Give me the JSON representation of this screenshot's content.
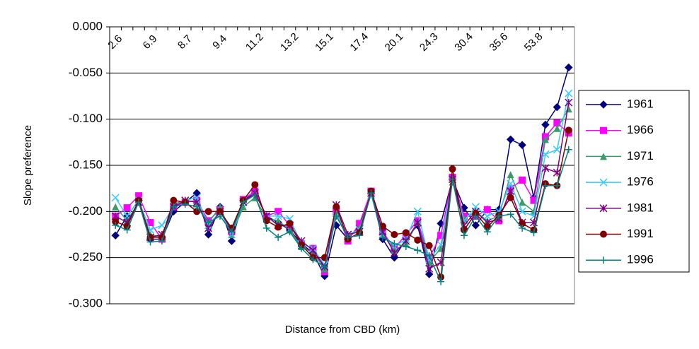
{
  "chart_data": {
    "type": "line",
    "x_label": "Distance from CBD (km)",
    "y_label": "Slope preference",
    "categories": [
      "2.6",
      null,
      null,
      "6.9",
      null,
      null,
      "8.7",
      null,
      null,
      "9.4",
      null,
      null,
      "11.2",
      null,
      null,
      "13.2",
      null,
      null,
      "15.1",
      null,
      null,
      "17.4",
      null,
      null,
      "20.1",
      null,
      null,
      "24.3",
      null,
      null,
      "30.4",
      null,
      null,
      "35.6",
      null,
      null,
      "53.8",
      null,
      null,
      null
    ],
    "ylim": [
      -0.3,
      0
    ],
    "yticks": [
      {
        "value": 0,
        "label": "0.000"
      },
      {
        "value": -0.05,
        "label": "-0.050"
      },
      {
        "value": -0.1,
        "label": "-0.100"
      },
      {
        "value": -0.15,
        "label": "-0.150"
      },
      {
        "value": -0.2,
        "label": "-0.200"
      },
      {
        "value": -0.25,
        "label": "-0.250"
      },
      {
        "value": -0.3,
        "label": "-0.300"
      }
    ],
    "grid": true,
    "legend": "right",
    "series": [
      {
        "name": "1961",
        "color": "#000080",
        "marker": "diamond",
        "values": [
          -0.226,
          -0.205,
          -0.188,
          -0.23,
          -0.23,
          -0.2,
          -0.19,
          -0.18,
          -0.225,
          -0.195,
          -0.232,
          -0.188,
          -0.18,
          -0.205,
          -0.212,
          -0.22,
          -0.235,
          -0.245,
          -0.27,
          -0.215,
          -0.23,
          -0.215,
          -0.18,
          -0.23,
          -0.25,
          -0.23,
          -0.215,
          -0.268,
          -0.213,
          -0.165,
          -0.196,
          -0.215,
          -0.198,
          -0.198,
          -0.122,
          -0.128,
          -0.185,
          -0.106,
          -0.087,
          -0.044
        ]
      },
      {
        "name": "1966",
        "color": "#ff00ff",
        "marker": "square",
        "values": [
          -0.205,
          -0.196,
          -0.183,
          -0.212,
          -0.23,
          -0.195,
          -0.19,
          -0.188,
          -0.21,
          -0.198,
          -0.222,
          -0.187,
          -0.178,
          -0.205,
          -0.2,
          -0.215,
          -0.235,
          -0.24,
          -0.265,
          -0.2,
          -0.232,
          -0.213,
          -0.178,
          -0.222,
          -0.24,
          -0.225,
          -0.21,
          -0.25,
          -0.226,
          -0.163,
          -0.205,
          -0.205,
          -0.198,
          -0.21,
          -0.175,
          -0.166,
          -0.188,
          -0.119,
          -0.104,
          -0.115
        ]
      },
      {
        "name": "1971",
        "color": "#3a9a6b",
        "marker": "triangle",
        "values": [
          -0.195,
          -0.21,
          -0.19,
          -0.225,
          -0.228,
          -0.192,
          -0.188,
          -0.19,
          -0.212,
          -0.195,
          -0.225,
          -0.195,
          -0.185,
          -0.208,
          -0.21,
          -0.22,
          -0.238,
          -0.245,
          -0.262,
          -0.202,
          -0.228,
          -0.218,
          -0.18,
          -0.225,
          -0.242,
          -0.235,
          -0.212,
          -0.255,
          -0.24,
          -0.168,
          -0.208,
          -0.2,
          -0.21,
          -0.205,
          -0.16,
          -0.19,
          -0.2,
          -0.122,
          -0.11,
          -0.089
        ]
      },
      {
        "name": "1976",
        "color": "#33ccff",
        "marker": "x",
        "values": [
          -0.185,
          -0.205,
          -0.188,
          -0.22,
          -0.215,
          -0.195,
          -0.188,
          -0.185,
          -0.215,
          -0.2,
          -0.225,
          -0.19,
          -0.18,
          -0.205,
          -0.205,
          -0.208,
          -0.235,
          -0.24,
          -0.258,
          -0.205,
          -0.225,
          -0.22,
          -0.182,
          -0.225,
          -0.238,
          -0.23,
          -0.2,
          -0.252,
          -0.236,
          -0.165,
          -0.21,
          -0.195,
          -0.205,
          -0.2,
          -0.17,
          -0.2,
          -0.205,
          -0.138,
          -0.133,
          -0.072
        ]
      },
      {
        "name": "1981",
        "color": "#800080",
        "marker": "star",
        "values": [
          -0.205,
          -0.212,
          -0.19,
          -0.228,
          -0.225,
          -0.195,
          -0.188,
          -0.19,
          -0.218,
          -0.2,
          -0.22,
          -0.19,
          -0.18,
          -0.205,
          -0.215,
          -0.215,
          -0.232,
          -0.242,
          -0.26,
          -0.193,
          -0.225,
          -0.222,
          -0.18,
          -0.222,
          -0.245,
          -0.232,
          -0.212,
          -0.262,
          -0.255,
          -0.165,
          -0.215,
          -0.2,
          -0.212,
          -0.208,
          -0.178,
          -0.212,
          -0.212,
          -0.153,
          -0.158,
          -0.082
        ]
      },
      {
        "name": "1991",
        "color": "#800000",
        "marker": "circle",
        "values": [
          -0.211,
          -0.216,
          -0.188,
          -0.228,
          -0.228,
          -0.188,
          -0.19,
          -0.2,
          -0.2,
          -0.2,
          -0.218,
          -0.188,
          -0.171,
          -0.21,
          -0.217,
          -0.213,
          -0.236,
          -0.25,
          -0.25,
          -0.195,
          -0.23,
          -0.223,
          -0.178,
          -0.216,
          -0.225,
          -0.223,
          -0.231,
          -0.237,
          -0.271,
          -0.154,
          -0.22,
          -0.202,
          -0.217,
          -0.204,
          -0.185,
          -0.213,
          -0.22,
          -0.17,
          -0.172,
          -0.112
        ]
      },
      {
        "name": "1996",
        "color": "#008080",
        "marker": "plus",
        "values": [
          -0.215,
          -0.22,
          -0.19,
          -0.233,
          -0.232,
          -0.195,
          -0.192,
          -0.195,
          -0.212,
          -0.205,
          -0.222,
          -0.19,
          -0.182,
          -0.218,
          -0.228,
          -0.222,
          -0.24,
          -0.252,
          -0.26,
          -0.205,
          -0.228,
          -0.226,
          -0.18,
          -0.228,
          -0.235,
          -0.238,
          -0.242,
          -0.248,
          -0.276,
          -0.165,
          -0.226,
          -0.205,
          -0.222,
          -0.205,
          -0.203,
          -0.218,
          -0.223,
          -0.172,
          -0.172,
          -0.133
        ]
      }
    ]
  }
}
